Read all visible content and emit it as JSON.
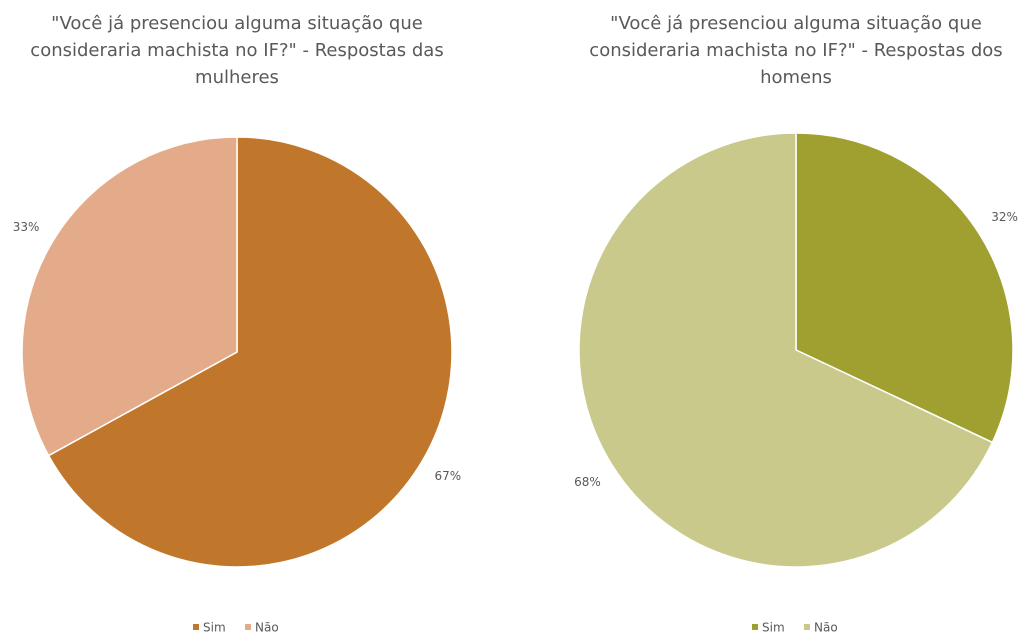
{
  "chart_data": [
    {
      "type": "pie",
      "title": "\"Você já presenciou alguma situação que consideraria machista no IF?\" - Respostas das mulheres",
      "categories": [
        "Sim",
        "Não"
      ],
      "values": [
        67,
        33
      ],
      "value_labels": [
        "67%",
        "33%"
      ],
      "colors": [
        "#c0772b",
        "#e4ab8b"
      ],
      "legend": "bottom"
    },
    {
      "type": "pie",
      "title": "\"Você já presenciou alguma situação que consideraria machista no IF?\" - Respostas dos homens",
      "categories": [
        "Sim",
        "Não"
      ],
      "values": [
        32,
        68
      ],
      "value_labels": [
        "32%",
        "68%"
      ],
      "colors": [
        "#a0a030",
        "#c9c98c"
      ],
      "legend": "bottom"
    }
  ]
}
